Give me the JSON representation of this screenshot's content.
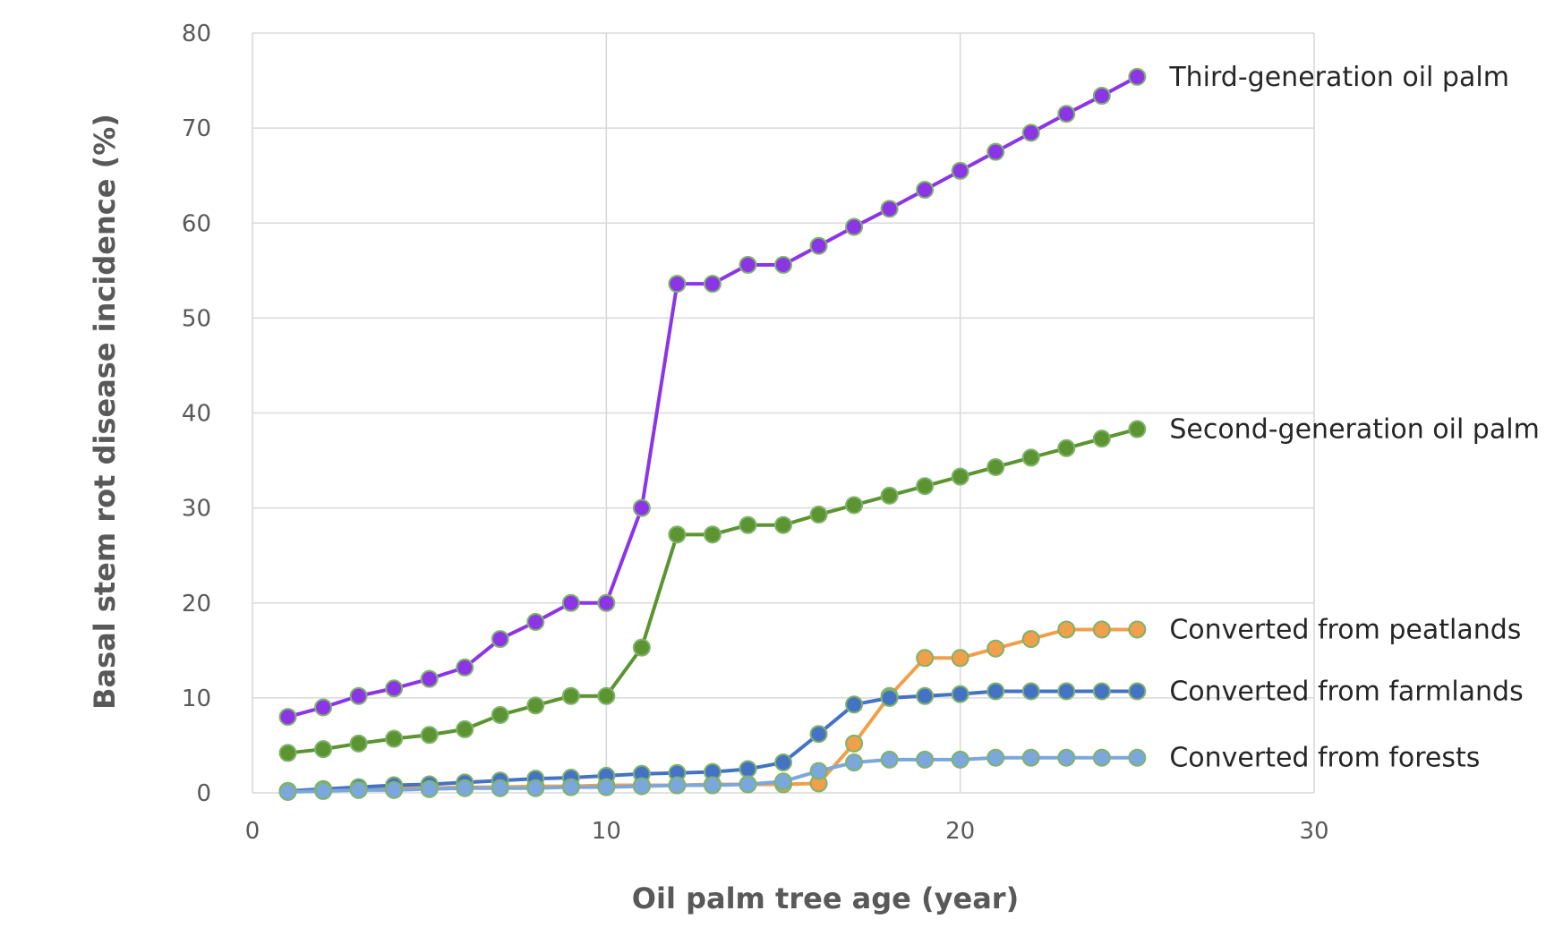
{
  "chart_data": {
    "type": "line",
    "title": "",
    "xlabel": "Oil palm tree age (year)",
    "ylabel": "Basal stem rot disease incidence (%)",
    "xlim": [
      0,
      30
    ],
    "ylim": [
      0,
      80
    ],
    "xticks": [
      0,
      10,
      20,
      30
    ],
    "yticks": [
      0,
      10,
      20,
      30,
      40,
      50,
      60,
      70,
      80
    ],
    "grid": true,
    "legend": "labels at line ends (right)",
    "x": [
      1,
      2,
      3,
      4,
      5,
      6,
      7,
      8,
      9,
      10,
      11,
      12,
      13,
      14,
      15,
      16,
      17,
      18,
      19,
      20,
      21,
      22,
      23,
      24,
      25
    ],
    "series": [
      {
        "name": "Converted from peatlands",
        "color": "#f0a04b",
        "values": [
          0.2,
          0.3,
          0.4,
          0.5,
          0.5,
          0.6,
          0.6,
          0.7,
          0.7,
          0.8,
          0.8,
          0.8,
          0.9,
          0.9,
          0.9,
          1.0,
          5.2,
          10.2,
          14.2,
          14.2,
          15.2,
          16.2,
          17.2,
          17.2,
          17.2
        ]
      },
      {
        "name": "Converted from farmlands",
        "color": "#4472c4",
        "values": [
          0.2,
          0.4,
          0.6,
          0.8,
          0.9,
          1.1,
          1.3,
          1.5,
          1.6,
          1.8,
          2.0,
          2.1,
          2.2,
          2.5,
          3.2,
          6.2,
          9.3,
          10.0,
          10.2,
          10.4,
          10.7,
          10.7,
          10.7,
          10.7,
          10.7
        ]
      },
      {
        "name": "Converted from forests",
        "color": "#7ba7dc",
        "values": [
          0.1,
          0.2,
          0.3,
          0.3,
          0.4,
          0.5,
          0.5,
          0.5,
          0.6,
          0.6,
          0.7,
          0.8,
          0.8,
          0.9,
          1.2,
          2.3,
          3.2,
          3.5,
          3.5,
          3.5,
          3.7,
          3.7,
          3.7,
          3.7,
          3.7
        ]
      },
      {
        "name": "Second-generation oil palm",
        "color": "#5b9431",
        "values": [
          4.2,
          4.6,
          5.2,
          5.7,
          6.1,
          6.7,
          8.2,
          9.2,
          10.2,
          10.2,
          15.3,
          27.2,
          27.2,
          28.2,
          28.2,
          29.3,
          30.3,
          31.3,
          32.3,
          33.3,
          34.3,
          35.3,
          36.3,
          37.3,
          38.3
        ]
      },
      {
        "name": "Third-generation oil palm",
        "color": "#8b35e6",
        "values": [
          8.0,
          9.0,
          10.2,
          11.0,
          12.0,
          13.2,
          16.2,
          18.0,
          20.0,
          20.0,
          30.0,
          53.6,
          53.6,
          55.6,
          55.6,
          57.6,
          59.6,
          61.5,
          63.5,
          65.5,
          67.5,
          69.5,
          71.5,
          73.4,
          75.4
        ]
      }
    ]
  }
}
